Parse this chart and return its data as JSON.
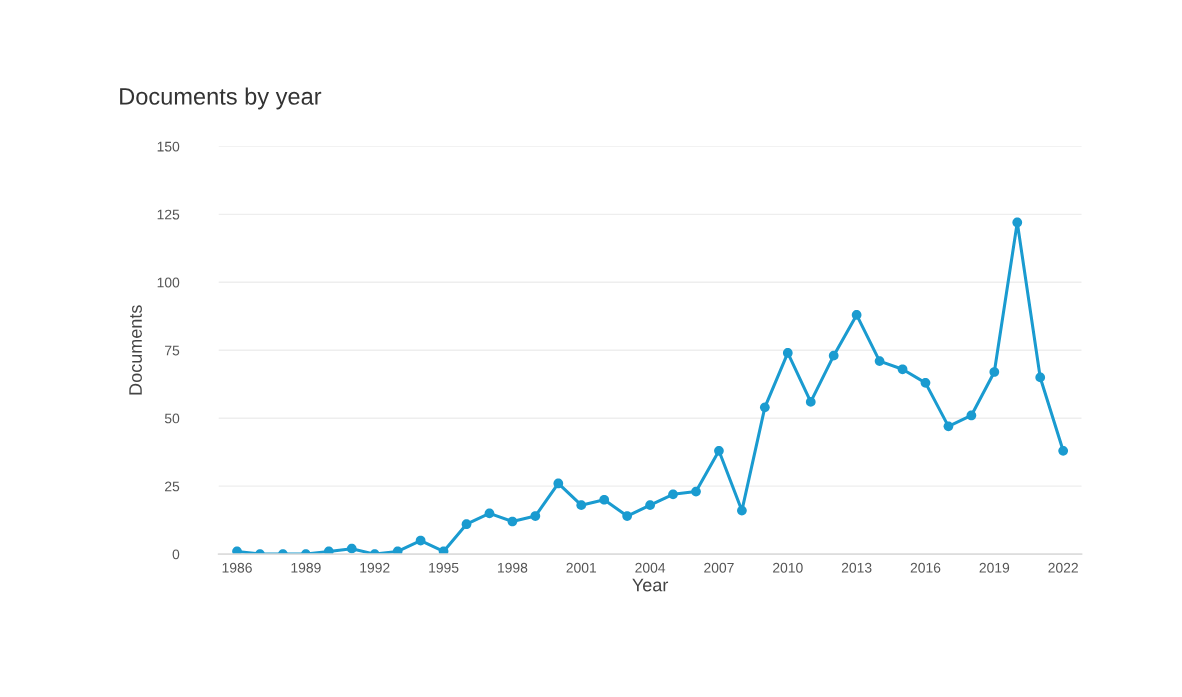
{
  "chart_data": {
    "type": "line",
    "title": "Documents by year",
    "xlabel": "Year",
    "ylabel": "Documents",
    "x": [
      1986,
      1987,
      1988,
      1989,
      1990,
      1991,
      1992,
      1993,
      1994,
      1995,
      1996,
      1997,
      1998,
      1999,
      2000,
      2001,
      2002,
      2003,
      2004,
      2005,
      2006,
      2007,
      2008,
      2009,
      2010,
      2011,
      2012,
      2013,
      2014,
      2015,
      2016,
      2017,
      2018,
      2019,
      2020,
      2021,
      2022
    ],
    "series": [
      {
        "color": "#1a9bd0",
        "values": [
          1,
          0,
          0,
          0,
          1,
          2,
          0,
          1,
          5,
          1,
          11,
          15,
          12,
          14,
          26,
          18,
          20,
          14,
          18,
          22,
          23,
          38,
          16,
          54,
          74,
          56,
          73,
          88,
          71,
          68,
          63,
          47,
          51,
          67,
          122,
          65,
          38
        ]
      }
    ],
    "xlim": [
      1985.2,
      2022.8
    ],
    "xticks": [
      1986,
      1989,
      1992,
      1995,
      1998,
      2001,
      2004,
      2007,
      2010,
      2013,
      2016,
      2019,
      2022
    ],
    "ylim": [
      0,
      150
    ],
    "yticks": [
      0,
      25,
      50,
      75,
      100,
      125,
      150
    ],
    "grid": "y",
    "marker": "circle",
    "line_style": "solid"
  }
}
